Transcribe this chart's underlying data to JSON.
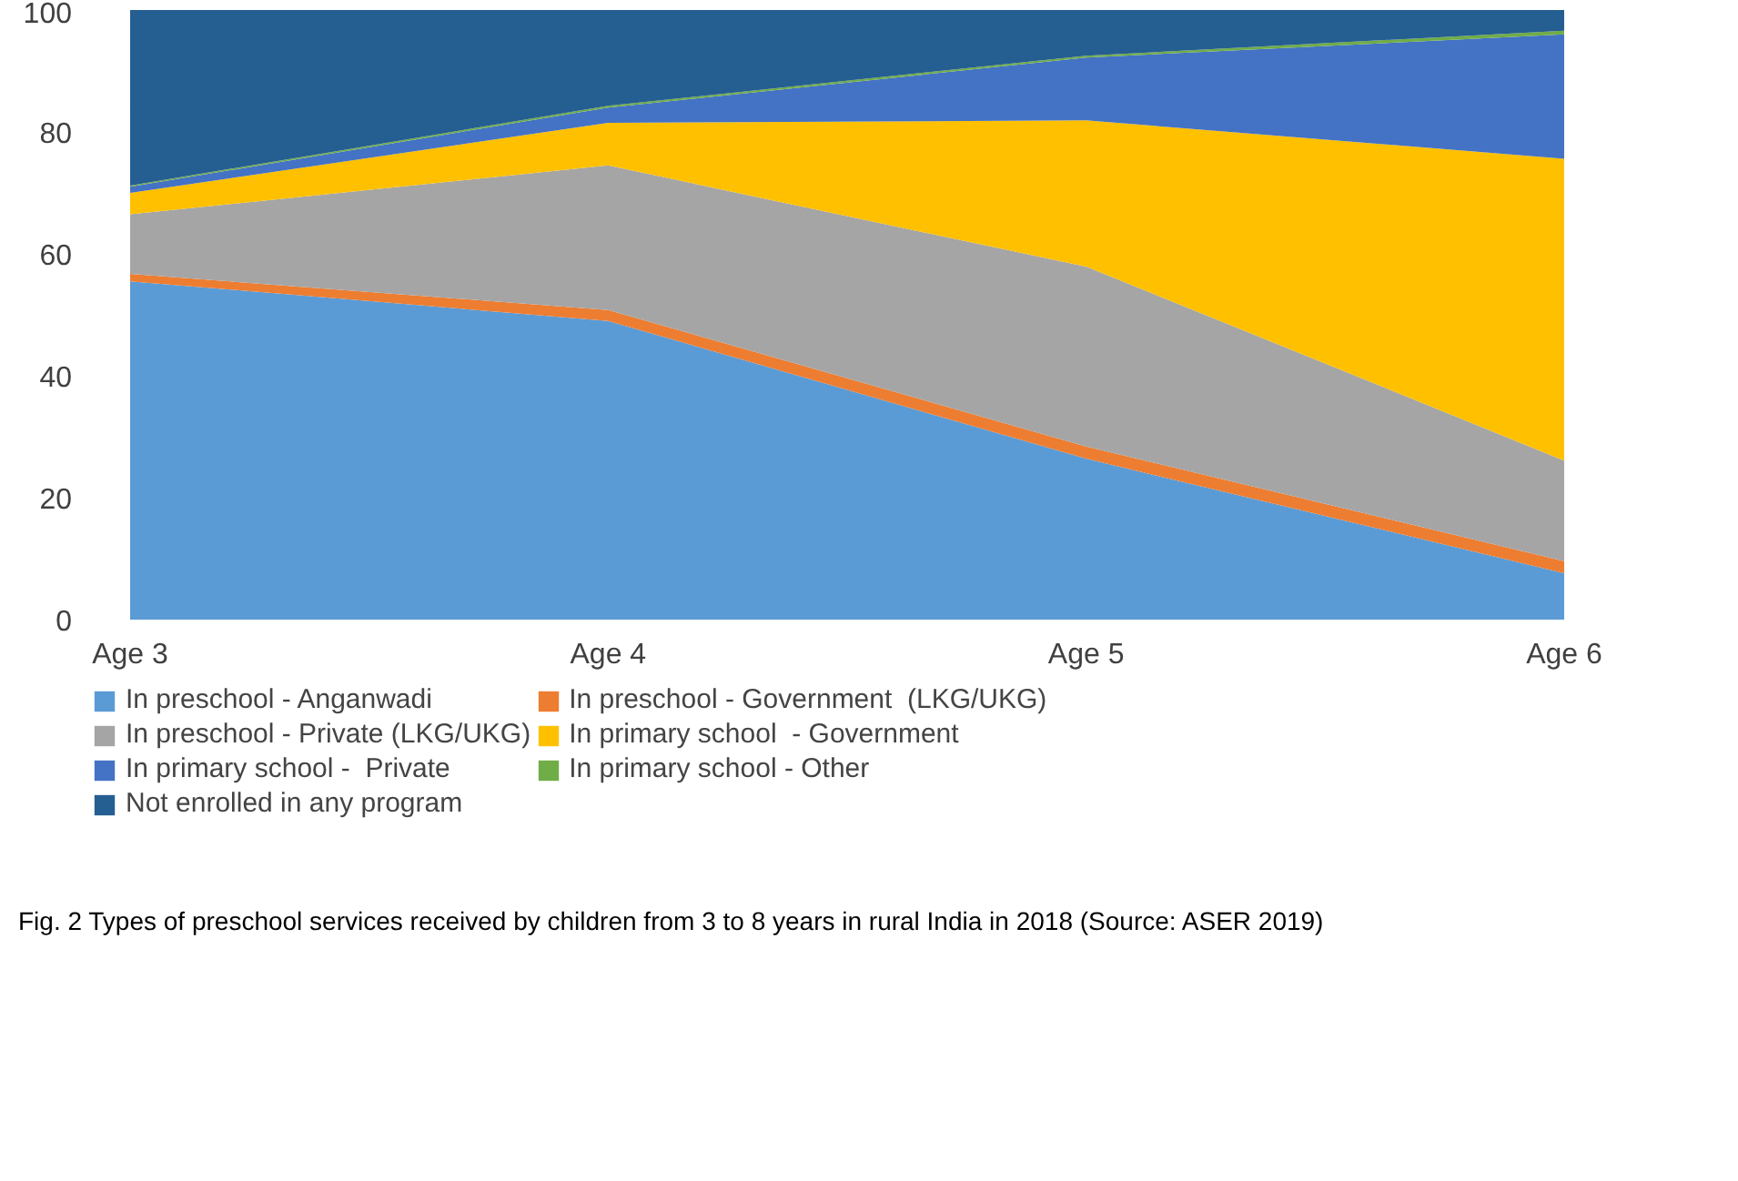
{
  "chart_data": {
    "type": "area",
    "stacked": true,
    "categories": [
      "Age 3",
      "Age 4",
      "Age 5",
      "Age 6"
    ],
    "ylim": [
      0,
      100
    ],
    "yticks": [
      0,
      20,
      40,
      60,
      80,
      100
    ],
    "grid": false,
    "legend": "bottom",
    "series": [
      {
        "name": "In preschool - Anganwadi",
        "color": "#5b9bd5",
        "values": [
          55.5,
          49,
          26.4,
          7.6
        ]
      },
      {
        "name": "In preschool - Government  (LKG/UKG)",
        "color": "#ed7d31",
        "values": [
          1.2,
          1.8,
          2.0,
          2.0
        ]
      },
      {
        "name": "In preschool - Private (LKG/UKG)",
        "color": "#a5a5a5",
        "values": [
          9.8,
          23.7,
          29.5,
          16.5
        ]
      },
      {
        "name": "In primary school  - Government",
        "color": "#ffc000",
        "values": [
          3.5,
          7.0,
          24.0,
          49.5
        ]
      },
      {
        "name": "In primary school -  Private",
        "color": "#4472c4",
        "values": [
          1.0,
          2.5,
          10.3,
          20.4
        ]
      },
      {
        "name": "In primary school - Other",
        "color": "#70ad47",
        "values": [
          0.2,
          0.3,
          0.3,
          0.6
        ]
      },
      {
        "name": "Not enrolled in any program",
        "color": "#255e91",
        "values": [
          28.8,
          15.7,
          7.5,
          3.4
        ]
      }
    ],
    "annotations": [
      "Fig. 2  Types of preschool services received by children from 3 to 8 years in rural India in 2018 (Source: ASER 2019)"
    ]
  }
}
